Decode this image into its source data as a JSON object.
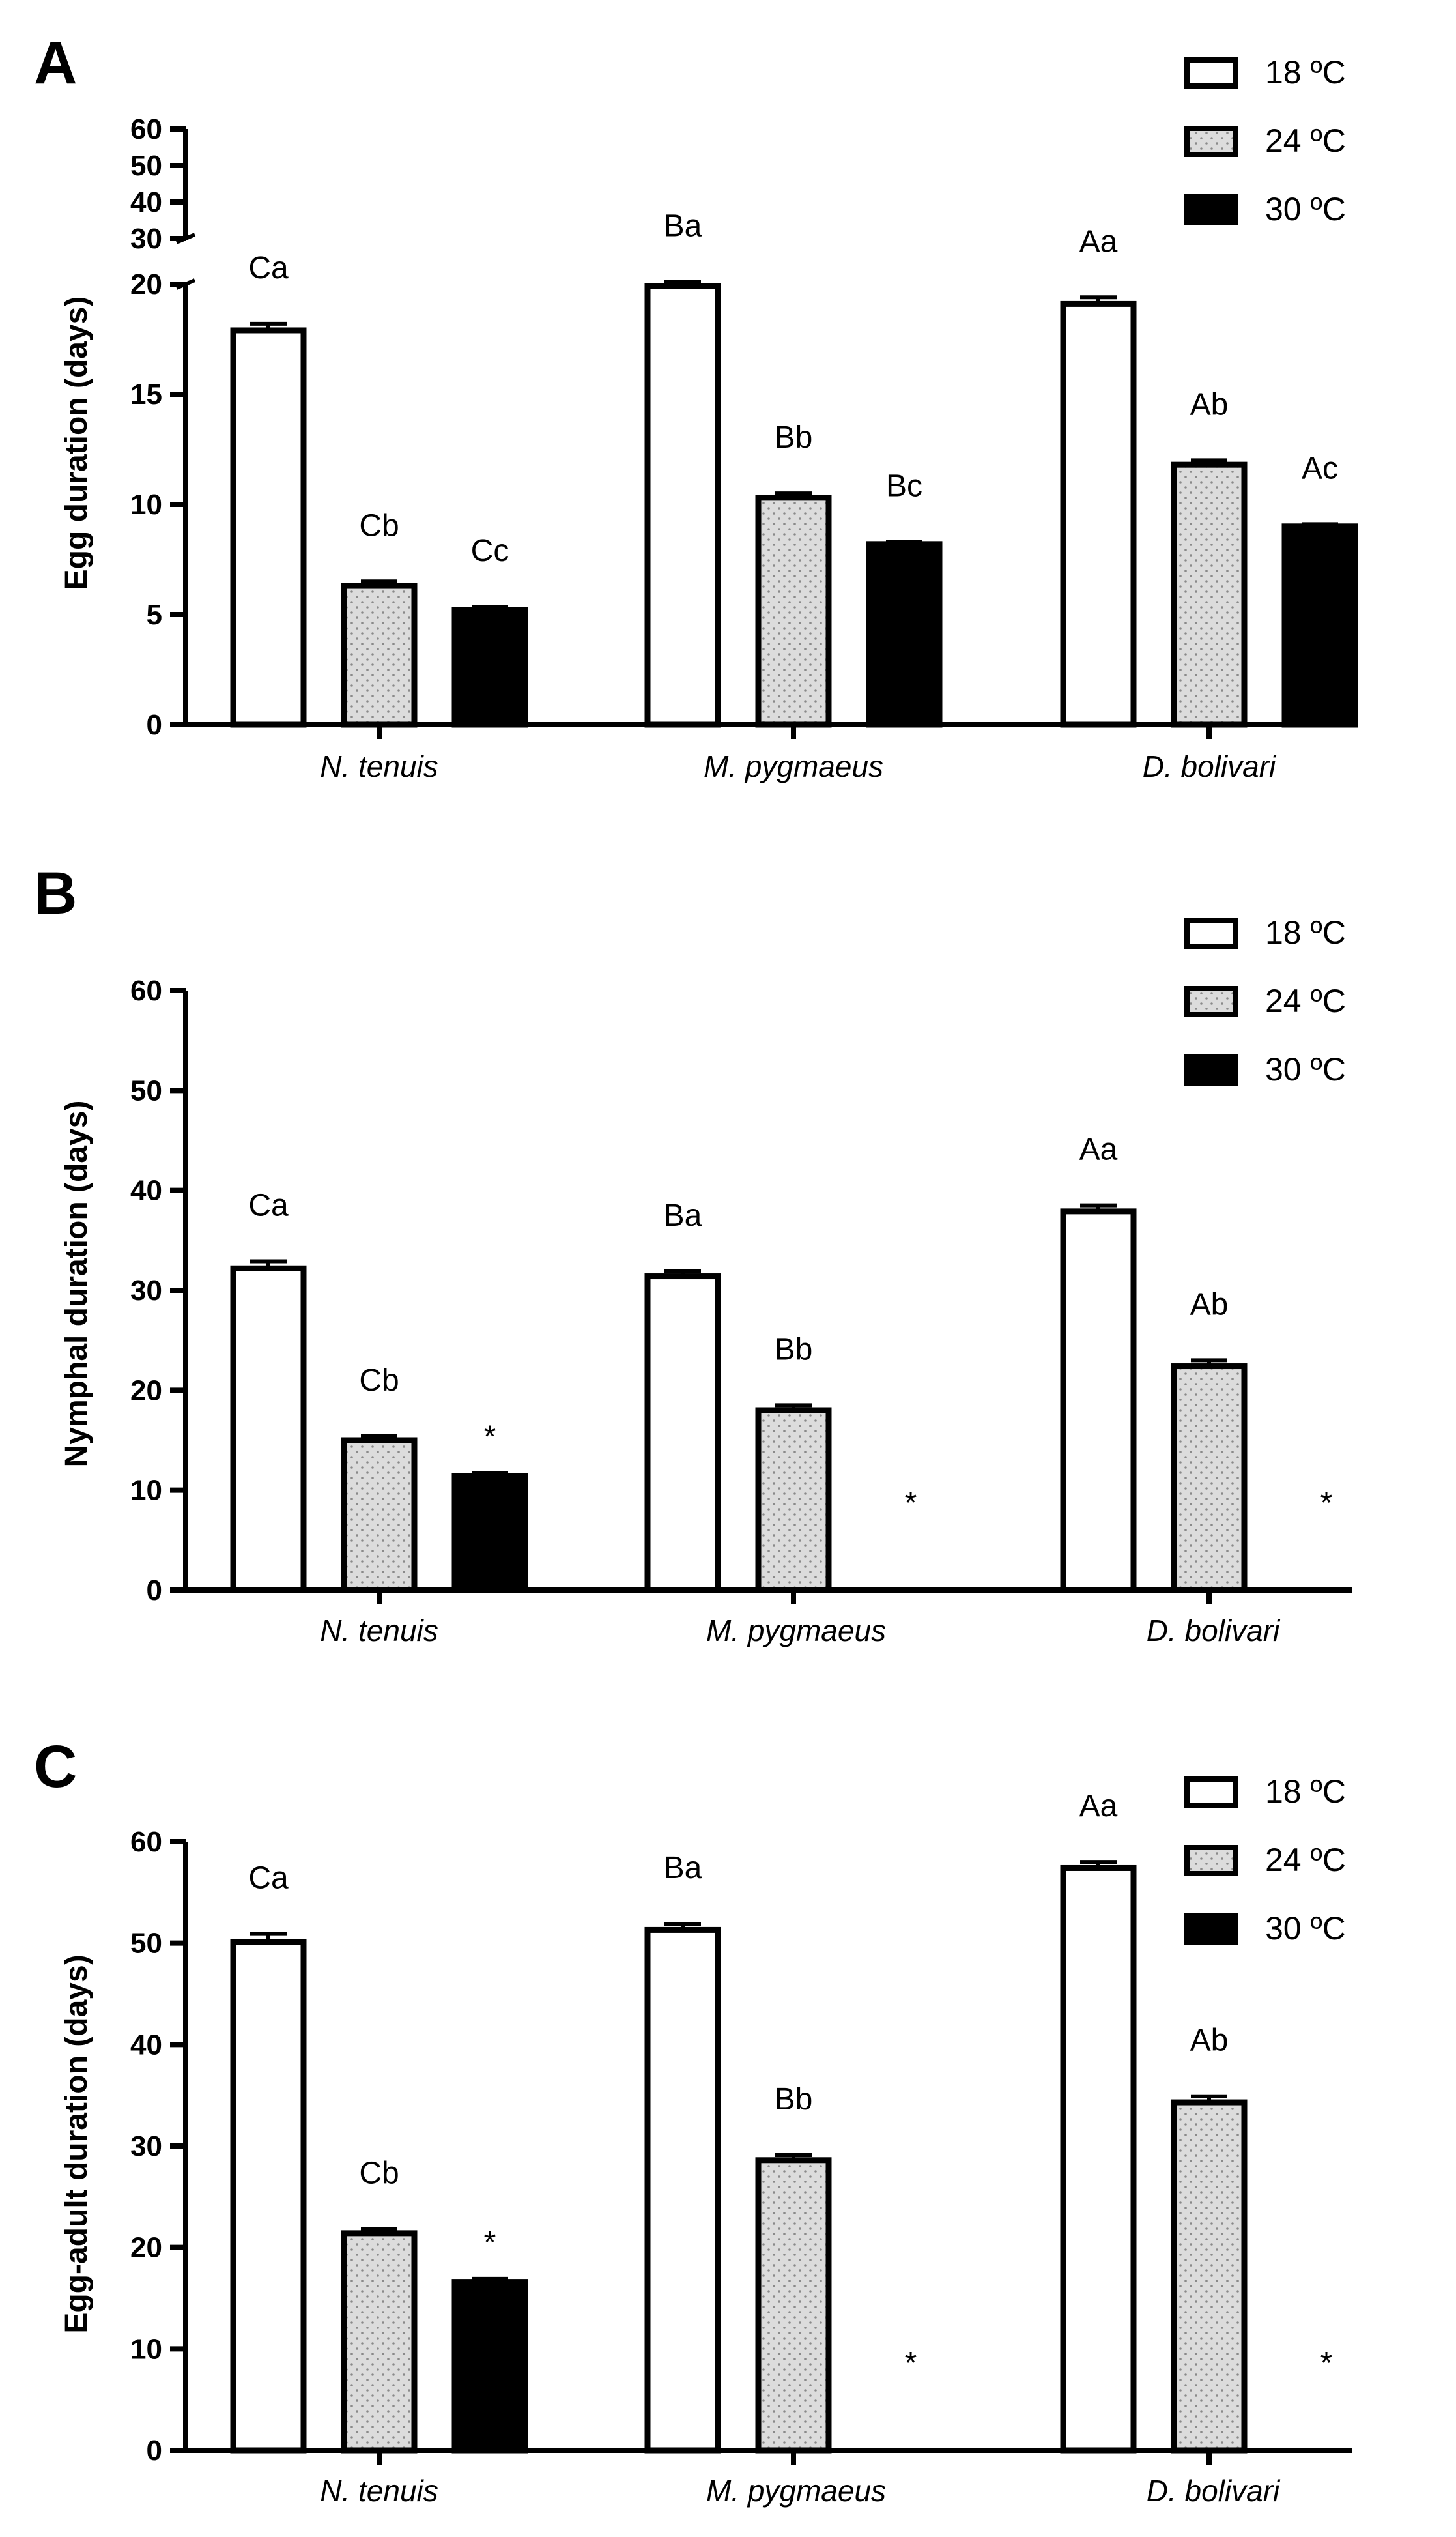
{
  "colors": {
    "s18": "#ffffff",
    "s24": "#d9d9d9",
    "s30": "#000000",
    "axis": "#000000"
  },
  "chart_data": [
    {
      "type": "bar",
      "panel": "A",
      "ylabel": "Egg duration (days)",
      "categories": [
        "N. tenuis",
        "M. pygmaeus",
        "D. bolivari"
      ],
      "y_axis": {
        "broken": true,
        "lower_range": [
          0,
          20
        ],
        "lower_ticks": [
          "0",
          "5",
          "10",
          "15",
          "20"
        ],
        "upper_range": [
          30,
          60
        ],
        "upper_ticks": [
          "30",
          "40",
          "50",
          "60"
        ]
      },
      "legend": [
        "18 ºC",
        "24 ºC",
        "30 ºC"
      ],
      "series": [
        {
          "name": "18 ºC",
          "values": [
            17.9,
            19.9,
            19.1
          ],
          "errors": [
            0.3,
            0.2,
            0.3
          ],
          "labels": [
            "Ca",
            "Ba",
            "Aa"
          ]
        },
        {
          "name": "24 ºC",
          "values": [
            6.3,
            10.3,
            11.8
          ],
          "errors": [
            0.2,
            0.2,
            0.2
          ],
          "labels": [
            "Cb",
            "Bb",
            "Ab"
          ]
        },
        {
          "name": "30 ºC",
          "values": [
            5.2,
            8.2,
            9.0
          ],
          "errors": [
            0.15,
            0.1,
            0.1
          ],
          "labels": [
            "Cc",
            "Bc",
            "Ac"
          ]
        }
      ]
    },
    {
      "type": "bar",
      "panel": "B",
      "ylabel": "Nymphal duration (days)",
      "categories": [
        "N. tenuis",
        "M. pygmaeus",
        "D. bolivari"
      ],
      "ylim": [
        0,
        60
      ],
      "yticks": [
        "0",
        "10",
        "20",
        "30",
        "40",
        "50",
        "60"
      ],
      "legend": [
        "18 ºC",
        "24 ºC",
        "30 ºC"
      ],
      "series": [
        {
          "name": "18 ºC",
          "values": [
            32.2,
            31.4,
            37.9
          ],
          "errors": [
            0.7,
            0.5,
            0.6
          ],
          "labels": [
            "Ca",
            "Ba",
            "Aa"
          ]
        },
        {
          "name": "24 ºC",
          "values": [
            15.0,
            18.0,
            22.4
          ],
          "errors": [
            0.4,
            0.5,
            0.6
          ],
          "labels": [
            "Cb",
            "Bb",
            "Ab"
          ]
        },
        {
          "name": "30 ºC",
          "values": [
            11.4,
            null,
            null
          ],
          "errors": [
            0.3,
            null,
            null
          ],
          "labels": [
            "*",
            "*",
            "*"
          ]
        }
      ]
    },
    {
      "type": "bar",
      "panel": "C",
      "ylabel": "Egg-adult duration (days)",
      "categories": [
        "N. tenuis",
        "M. pygmaeus",
        "D. bolivari"
      ],
      "ylim": [
        0,
        60
      ],
      "yticks": [
        "0",
        "10",
        "20",
        "30",
        "40",
        "50",
        "60"
      ],
      "legend": [
        "18 ºC",
        "24 ºC",
        "30 ºC"
      ],
      "series": [
        {
          "name": "18 ºC",
          "values": [
            50.1,
            51.3,
            57.4
          ],
          "errors": [
            0.8,
            0.6,
            0.6
          ],
          "labels": [
            "Ca",
            "Ba",
            "Aa"
          ]
        },
        {
          "name": "24 ºC",
          "values": [
            21.4,
            28.6,
            34.3
          ],
          "errors": [
            0.4,
            0.5,
            0.6
          ],
          "labels": [
            "Cb",
            "Bb",
            "Ab"
          ]
        },
        {
          "name": "30 ºC",
          "values": [
            16.6,
            null,
            null
          ],
          "errors": [
            0.3,
            null,
            null
          ],
          "labels": [
            "*",
            "*",
            "*"
          ]
        }
      ]
    }
  ]
}
